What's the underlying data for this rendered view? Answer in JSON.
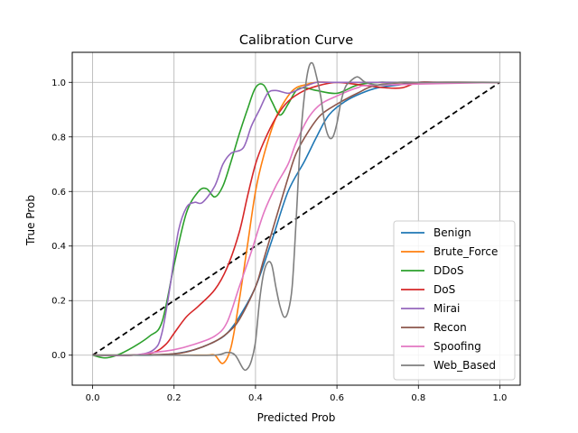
{
  "chart_data": {
    "type": "line",
    "title": "Calibration Curve",
    "xlabel": "Predicted Prob",
    "ylabel": "True Prob",
    "xlim": [
      -0.05,
      1.05
    ],
    "ylim": [
      -0.11,
      1.11
    ],
    "xticks": [
      0.0,
      0.2,
      0.4,
      0.6,
      0.8,
      1.0
    ],
    "xtick_labels": [
      "0.0",
      "0.2",
      "0.4",
      "0.6",
      "0.8",
      "1.0"
    ],
    "yticks": [
      0.0,
      0.2,
      0.4,
      0.6,
      0.8,
      1.0
    ],
    "ytick_labels": [
      "0.0",
      "0.2",
      "0.4",
      "0.6",
      "0.8",
      "1.0"
    ],
    "grid": true,
    "legend_position": "lower-right",
    "reference_line": {
      "x": [
        0,
        1
      ],
      "y": [
        0,
        1
      ],
      "color": "#000000",
      "style": "dashed"
    },
    "series": [
      {
        "name": "Benign",
        "color": "#1f77b4",
        "x": [
          0,
          0.05,
          0.1,
          0.15,
          0.2,
          0.25,
          0.3,
          0.33,
          0.36,
          0.4,
          0.44,
          0.48,
          0.52,
          0.55,
          0.58,
          0.62,
          0.66,
          0.7,
          0.75,
          0.8,
          0.85,
          1.0
        ],
        "y": [
          0,
          0,
          0,
          0,
          0.005,
          0.02,
          0.05,
          0.08,
          0.14,
          0.25,
          0.42,
          0.6,
          0.71,
          0.8,
          0.88,
          0.93,
          0.96,
          0.98,
          0.99,
          1.0,
          1.0,
          1.0
        ]
      },
      {
        "name": "Brute_Force",
        "color": "#ff7f0e",
        "x": [
          0,
          0.1,
          0.2,
          0.28,
          0.3,
          0.32,
          0.34,
          0.36,
          0.38,
          0.4,
          0.42,
          0.45,
          0.48,
          0.5,
          0.52,
          0.55,
          0.6,
          0.7,
          1.0
        ],
        "y": [
          0,
          0,
          0,
          0,
          0,
          -0.03,
          0.03,
          0.2,
          0.4,
          0.6,
          0.73,
          0.87,
          0.95,
          0.98,
          0.99,
          1.0,
          1.0,
          1.0,
          1.0
        ]
      },
      {
        "name": "DDoS",
        "color": "#2ca02c",
        "x": [
          0,
          0.03,
          0.06,
          0.1,
          0.14,
          0.17,
          0.2,
          0.23,
          0.26,
          0.28,
          0.3,
          0.32,
          0.34,
          0.36,
          0.38,
          0.4,
          0.42,
          0.44,
          0.46,
          0.48,
          0.5,
          0.52,
          0.55,
          0.6,
          0.65,
          0.7,
          0.75,
          1.0
        ],
        "y": [
          0,
          -0.01,
          0,
          0.03,
          0.07,
          0.12,
          0.33,
          0.52,
          0.6,
          0.61,
          0.58,
          0.62,
          0.71,
          0.81,
          0.9,
          0.98,
          0.99,
          0.93,
          0.88,
          0.92,
          0.97,
          0.98,
          0.97,
          0.96,
          0.99,
          1.0,
          1.0,
          1.0
        ]
      },
      {
        "name": "DoS",
        "color": "#d62728",
        "x": [
          0,
          0.1,
          0.15,
          0.18,
          0.2,
          0.23,
          0.26,
          0.3,
          0.33,
          0.36,
          0.38,
          0.4,
          0.42,
          0.45,
          0.48,
          0.52,
          0.56,
          0.6,
          0.66,
          0.72,
          0.76,
          0.8,
          0.85,
          1.0
        ],
        "y": [
          0,
          0,
          0.01,
          0.04,
          0.08,
          0.14,
          0.18,
          0.24,
          0.32,
          0.45,
          0.58,
          0.7,
          0.78,
          0.87,
          0.93,
          0.97,
          0.99,
          1.0,
          0.99,
          0.98,
          0.98,
          1.0,
          1.0,
          1.0
        ]
      },
      {
        "name": "Mirai",
        "color": "#9467bd",
        "x": [
          0,
          0.1,
          0.15,
          0.17,
          0.19,
          0.21,
          0.23,
          0.25,
          0.27,
          0.3,
          0.32,
          0.34,
          0.37,
          0.39,
          0.41,
          0.43,
          0.45,
          0.48,
          0.5,
          0.55,
          0.6,
          1.0
        ],
        "y": [
          0,
          0,
          0.02,
          0.08,
          0.25,
          0.45,
          0.54,
          0.56,
          0.56,
          0.62,
          0.7,
          0.74,
          0.76,
          0.84,
          0.9,
          0.96,
          0.97,
          0.96,
          0.97,
          1.0,
          1.0,
          1.0
        ]
      },
      {
        "name": "Recon",
        "color": "#8c564b",
        "x": [
          0,
          0.1,
          0.2,
          0.25,
          0.3,
          0.33,
          0.36,
          0.4,
          0.42,
          0.45,
          0.48,
          0.5,
          0.53,
          0.56,
          0.6,
          0.65,
          0.7,
          0.8,
          1.0
        ],
        "y": [
          0,
          0,
          0.005,
          0.02,
          0.05,
          0.08,
          0.13,
          0.25,
          0.35,
          0.5,
          0.65,
          0.74,
          0.82,
          0.88,
          0.92,
          0.96,
          0.99,
          1.0,
          1.0
        ]
      },
      {
        "name": "Spoofing",
        "color": "#e377c2",
        "x": [
          0,
          0.1,
          0.15,
          0.2,
          0.25,
          0.3,
          0.33,
          0.36,
          0.39,
          0.42,
          0.45,
          0.48,
          0.5,
          0.53,
          0.56,
          0.6,
          0.65,
          0.7,
          1.0
        ],
        "y": [
          0,
          0,
          0.01,
          0.02,
          0.04,
          0.07,
          0.12,
          0.25,
          0.38,
          0.52,
          0.62,
          0.7,
          0.78,
          0.87,
          0.92,
          0.95,
          0.98,
          0.99,
          1.0
        ]
      },
      {
        "name": "Web_Based",
        "color": "#7f7f7f",
        "x": [
          0,
          0.1,
          0.2,
          0.3,
          0.33,
          0.35,
          0.37,
          0.38,
          0.39,
          0.4,
          0.41,
          0.42,
          0.43,
          0.44,
          0.45,
          0.46,
          0.47,
          0.48,
          0.49,
          0.5,
          0.51,
          0.52,
          0.53,
          0.54,
          0.55,
          0.56,
          0.57,
          0.58,
          0.59,
          0.6,
          0.61,
          0.62,
          0.63,
          0.65,
          0.67,
          0.7,
          0.75,
          0.8,
          0.85,
          1.0
        ],
        "y": [
          0,
          0,
          0,
          0,
          0.01,
          0.0,
          -0.05,
          -0.05,
          -0.02,
          0.05,
          0.2,
          0.3,
          0.34,
          0.33,
          0.25,
          0.18,
          0.14,
          0.16,
          0.25,
          0.5,
          0.78,
          0.95,
          1.05,
          1.07,
          1.02,
          0.95,
          0.85,
          0.8,
          0.8,
          0.85,
          0.93,
          0.98,
          1.0,
          1.02,
          1.0,
          0.99,
          1.0,
          1.0,
          1.0,
          1.0
        ]
      }
    ]
  }
}
